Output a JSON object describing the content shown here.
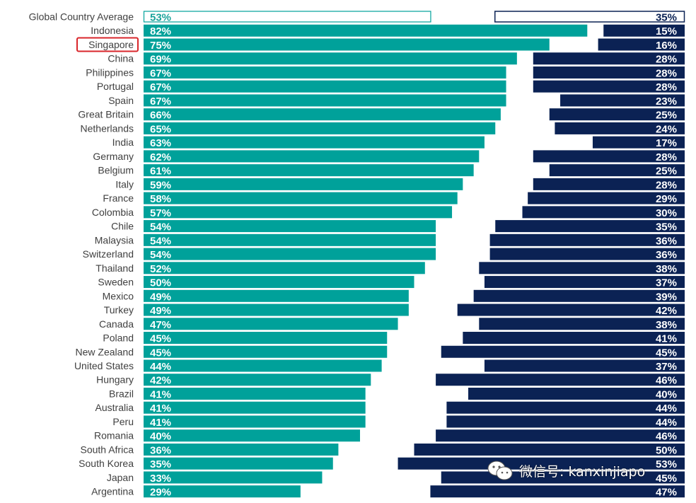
{
  "colors": {
    "left_bar": "#00a19a",
    "right_bar": "#0b2254",
    "highlight_box": "#d9262b",
    "label_text": "#404040"
  },
  "highlight": "Singapore",
  "watermark": {
    "text": "微信号: kanxinjiapo",
    "icon": "wechat-logo-icon"
  },
  "chart_data": {
    "type": "bar",
    "orientation": "horizontal",
    "layout": "diverging-stacked",
    "xlim": [
      0,
      100
    ],
    "grid": false,
    "categories": [
      "Global Country Average",
      "Indonesia",
      "Singapore",
      "China",
      "Philippines",
      "Portugal",
      "Spain",
      "Great Britain",
      "Netherlands",
      "India",
      "Germany",
      "Belgium",
      "Italy",
      "France",
      "Colombia",
      "Chile",
      "Malaysia",
      "Switzerland",
      "Thailand",
      "Sweden",
      "Mexico",
      "Turkey",
      "Canada",
      "Poland",
      "New Zealand",
      "United States",
      "Hungary",
      "Brazil",
      "Australia",
      "Peru",
      "Romania",
      "South Africa",
      "South Korea",
      "Japan",
      "Argentina"
    ],
    "series": [
      {
        "values": [
          53,
          82,
          75,
          69,
          67,
          67,
          67,
          66,
          65,
          63,
          62,
          61,
          59,
          58,
          57,
          54,
          54,
          54,
          52,
          50,
          49,
          49,
          47,
          45,
          45,
          44,
          42,
          41,
          41,
          41,
          40,
          36,
          35,
          33,
          29
        ]
      },
      {
        "values": [
          35,
          15,
          16,
          28,
          28,
          28,
          23,
          25,
          24,
          17,
          28,
          25,
          28,
          29,
          30,
          35,
          36,
          36,
          38,
          37,
          39,
          42,
          38,
          41,
          45,
          37,
          46,
          40,
          44,
          44,
          46,
          50,
          53,
          45,
          47
        ]
      }
    ],
    "value_labels_left": [
      "53%",
      "82%",
      "75%",
      "69%",
      "67%",
      "67%",
      "67%",
      "66%",
      "65%",
      "63%",
      "62%",
      "61%",
      "59%",
      "58%",
      "57%",
      "54%",
      "54%",
      "54%",
      "52%",
      "50%",
      "49%",
      "49%",
      "47%",
      "45%",
      "45%",
      "44%",
      "42%",
      "41%",
      "41%",
      "41%",
      "40%",
      "36%",
      "35%",
      "33%",
      "29%"
    ],
    "value_labels_right": [
      "35%",
      "15%",
      "16%",
      "28%",
      "28%",
      "28%",
      "23%",
      "25%",
      "24%",
      "17%",
      "28%",
      "25%",
      "28%",
      "29%",
      "30%",
      "35%",
      "36%",
      "36%",
      "38%",
      "37%",
      "39%",
      "42%",
      "38%",
      "41%",
      "45%",
      "37%",
      "46%",
      "40%",
      "44%",
      "44%",
      "46%",
      "50%",
      "53%",
      "45%",
      "47%"
    ]
  }
}
